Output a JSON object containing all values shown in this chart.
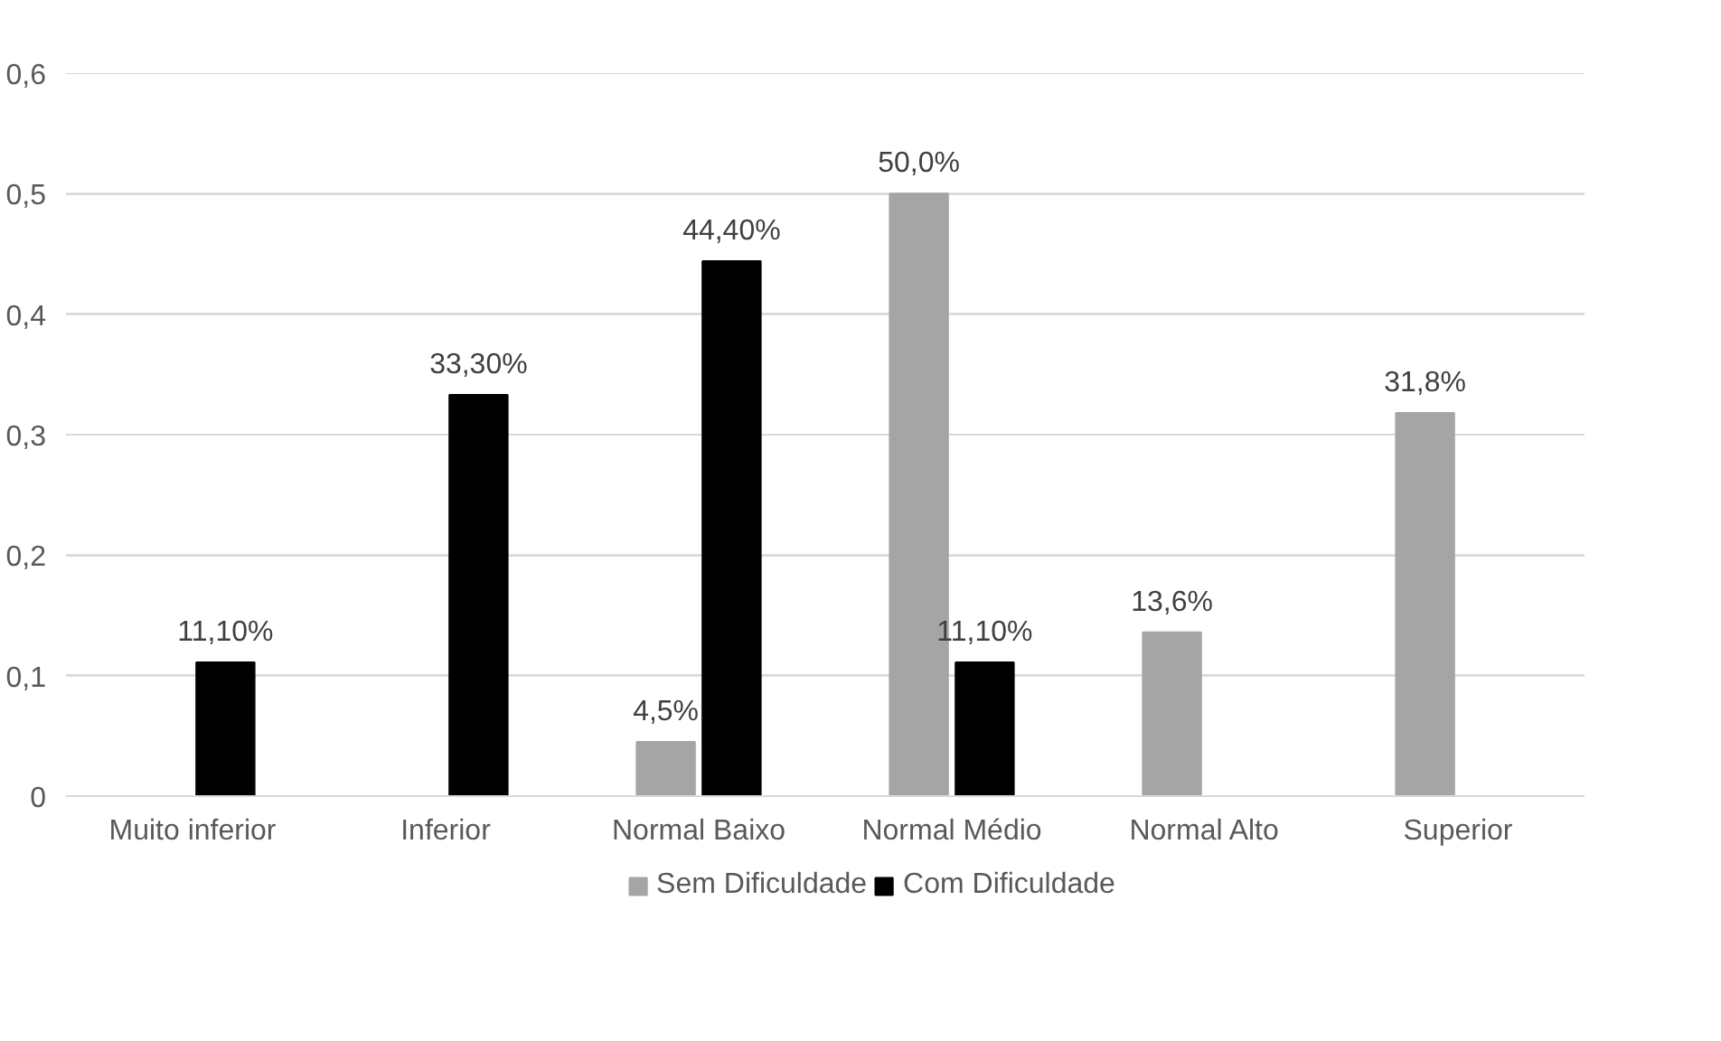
{
  "chart_data": {
    "type": "bar",
    "categories": [
      "Muito inferior",
      "Inferior",
      "Normal Baixo",
      "Normal Médio",
      "Normal Alto",
      "Superior"
    ],
    "series": [
      {
        "name": "Sem Dificuldade",
        "color": "#a5a5a5",
        "values": [
          null,
          null,
          0.045,
          0.5,
          0.136,
          0.318
        ],
        "value_labels": [
          null,
          null,
          "4,5%",
          "50,0%",
          "13,6%",
          "31,8%"
        ]
      },
      {
        "name": "Com Dificuldade",
        "color": "#000000",
        "values": [
          0.111,
          0.333,
          0.444,
          0.111,
          null,
          null
        ],
        "value_labels": [
          "11,10%",
          "33,30%",
          "44,40%",
          "11,10%",
          null,
          null
        ]
      }
    ],
    "ylim": [
      0,
      0.6
    ],
    "yticks": [
      {
        "value": 0,
        "label": "0"
      },
      {
        "value": 0.1,
        "label": "0,1"
      },
      {
        "value": 0.2,
        "label": "0,2"
      },
      {
        "value": 0.3,
        "label": "0,3"
      },
      {
        "value": 0.4,
        "label": "0,4"
      },
      {
        "value": 0.5,
        "label": "0,5"
      },
      {
        "value": 0.6,
        "label": "0,6"
      }
    ],
    "grid": "y",
    "legend": "bottom"
  }
}
